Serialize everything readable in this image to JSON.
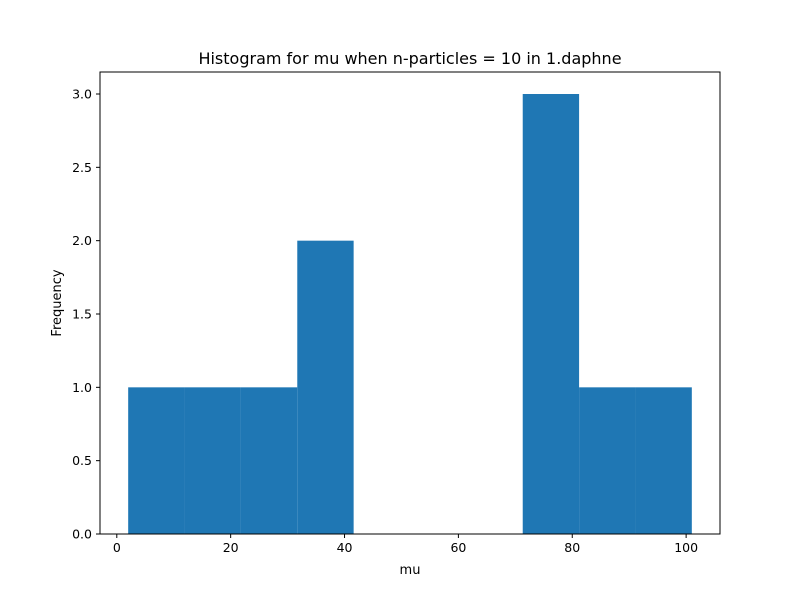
{
  "chart_data": {
    "type": "bar",
    "title": "Histogram for mu when n-particles = 10 in 1.daphne",
    "xlabel": "mu",
    "ylabel": "Frequency",
    "bins": [
      {
        "x0": 2,
        "x1": 11.9,
        "value": 1
      },
      {
        "x0": 11.9,
        "x1": 21.8,
        "value": 1
      },
      {
        "x0": 21.8,
        "x1": 31.7,
        "value": 1
      },
      {
        "x0": 31.7,
        "x1": 41.6,
        "value": 2
      },
      {
        "x0": 41.6,
        "x1": 51.5,
        "value": 0
      },
      {
        "x0": 51.5,
        "x1": 61.4,
        "value": 0
      },
      {
        "x0": 61.4,
        "x1": 71.3,
        "value": 0
      },
      {
        "x0": 71.3,
        "x1": 81.2,
        "value": 3
      },
      {
        "x0": 81.2,
        "x1": 91.1,
        "value": 1
      },
      {
        "x0": 91.1,
        "x1": 101.0,
        "value": 1
      }
    ],
    "xlim": [
      -2.95,
      105.95
    ],
    "ylim": [
      0,
      3.15
    ],
    "xticks": [
      0,
      20,
      40,
      60,
      80,
      100
    ],
    "xtick_labels": [
      "0",
      "20",
      "40",
      "60",
      "80",
      "100"
    ],
    "yticks": [
      0,
      0.5,
      1,
      1.5,
      2,
      2.5,
      3
    ],
    "ytick_labels": [
      "0.0",
      "0.5",
      "1.0",
      "1.5",
      "2.0",
      "2.5",
      "3.0"
    ],
    "grid": false,
    "bar_color": "#1f77b4"
  }
}
